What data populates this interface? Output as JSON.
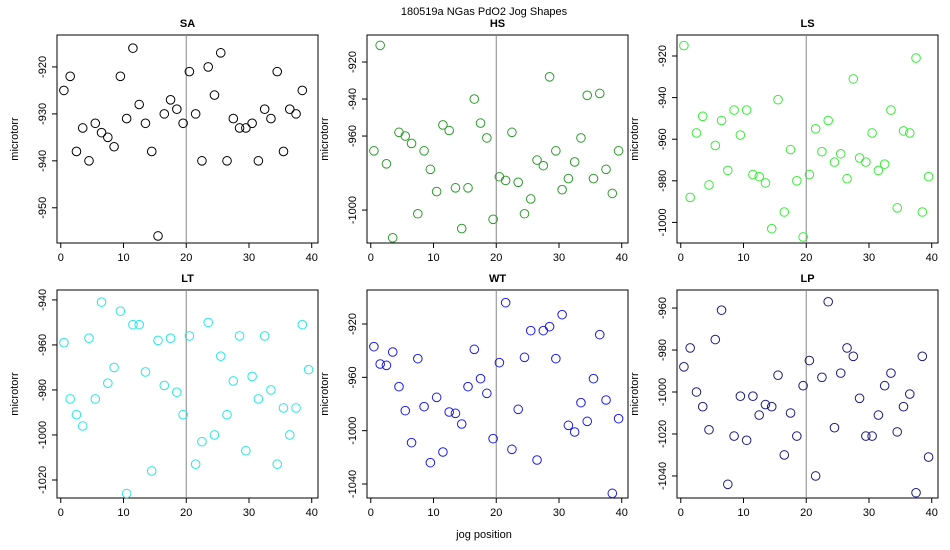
{
  "title": "180519a   NGas PdO2 Jog Shapes",
  "xlabel": "jog position",
  "chart_data": [
    {
      "type": "scatter",
      "title": "SA",
      "ylabel": "microtorr",
      "color": "#000000",
      "vline": 20,
      "xlim": [
        -0.6,
        41
      ],
      "ylim": [
        -957.5,
        -913.2
      ],
      "xticks": [
        0,
        10,
        20,
        30,
        40
      ],
      "yticks": [
        -950,
        -940,
        -930,
        -920
      ],
      "x": [
        0.5,
        1.5,
        2.5,
        3.5,
        4.5,
        5.5,
        6.5,
        7.5,
        8.5,
        9.5,
        10.5,
        11.5,
        12.5,
        13.5,
        14.5,
        15.5,
        16.5,
        17.5,
        18.5,
        19.5,
        20.5,
        21.5,
        22.5,
        23.5,
        24.5,
        25.5,
        26.5,
        27.5,
        28.5,
        29.5,
        30.5,
        31.5,
        32.5,
        33.5,
        34.5,
        35.5,
        36.5,
        37.5,
        38.5
      ],
      "values": [
        -925,
        -922,
        -938,
        -933,
        -940,
        -932,
        -934,
        -935,
        -937,
        -922,
        -931,
        -916,
        -928,
        -932,
        -938,
        -956,
        -930,
        -927,
        -929,
        -932,
        -921,
        -930,
        -940,
        -920,
        -926,
        -917,
        -940,
        -931,
        -933,
        -933,
        -932,
        -940,
        -929,
        -931,
        -921,
        -938,
        -929,
        -930,
        -925
      ]
    },
    {
      "type": "scatter",
      "title": "HS",
      "ylabel": "microtorr",
      "color": "#2e9a2e",
      "vline": 20,
      "xlim": [
        -0.6,
        41
      ],
      "ylim": [
        -1017.8,
        -905.4
      ],
      "xticks": [
        0,
        10,
        20,
        30,
        40
      ],
      "yticks": [
        -1000,
        -960,
        -940,
        -920
      ],
      "x": [
        0.5,
        1.5,
        2.5,
        3.5,
        4.5,
        5.5,
        6.5,
        7.5,
        8.5,
        9.5,
        10.5,
        11.5,
        12.5,
        13.5,
        14.5,
        15.5,
        16.5,
        17.5,
        18.5,
        19.5,
        20.5,
        21.5,
        22.5,
        23.5,
        24.5,
        25.5,
        26.5,
        27.5,
        28.5,
        29.5,
        30.5,
        31.5,
        32.5,
        33.5,
        34.5,
        35.5,
        36.5,
        37.5,
        38.5,
        39.5
      ],
      "values": [
        -968,
        -911,
        -975,
        -1015,
        -958,
        -960,
        -964,
        -1002,
        -968,
        -978,
        -990,
        -954,
        -957,
        -988,
        -1010,
        -988,
        -940,
        -953,
        -961,
        -1005,
        -982,
        -984,
        -958,
        -985,
        -1002,
        -994,
        -973,
        -976,
        -928,
        -968,
        -989,
        -983,
        -974,
        -961,
        -938,
        -983,
        -937,
        -978,
        -991,
        -968
      ]
    },
    {
      "type": "scatter",
      "title": "LS",
      "ylabel": "microtorr",
      "color": "#3aec3a",
      "vline": 20,
      "xlim": [
        -0.6,
        41
      ],
      "ylim": [
        -1009.9,
        -909.9
      ],
      "xticks": [
        0,
        10,
        20,
        30,
        40
      ],
      "yticks": [
        -1000,
        -980,
        -960,
        -940,
        -920
      ],
      "x": [
        0.5,
        1.5,
        2.5,
        3.5,
        4.5,
        5.5,
        6.5,
        7.5,
        8.5,
        9.5,
        10.5,
        11.5,
        12.5,
        13.5,
        14.5,
        15.5,
        16.5,
        17.5,
        18.5,
        19.5,
        20.5,
        21.5,
        22.5,
        23.5,
        24.5,
        25.5,
        26.5,
        27.5,
        28.5,
        29.5,
        30.5,
        31.5,
        32.5,
        33.5,
        34.5,
        35.5,
        36.5,
        37.5,
        38.5,
        39.5
      ],
      "values": [
        -915,
        -988,
        -957,
        -949,
        -982,
        -963,
        -951,
        -975,
        -946,
        -958,
        -946,
        -977,
        -978,
        -981,
        -1003,
        -941,
        -995,
        -965,
        -980,
        -1007,
        -977,
        -955,
        -966,
        -951,
        -971,
        -967,
        -979,
        -931,
        -969,
        -971,
        -957,
        -975,
        -972,
        -946,
        -993,
        -956,
        -957,
        -921,
        -995,
        -978
      ]
    },
    {
      "type": "scatter",
      "title": "LT",
      "ylabel": "microtorr",
      "color": "#2ae6e6",
      "vline": 20,
      "xlim": [
        -0.6,
        41
      ],
      "ylim": [
        -1028,
        -935.6
      ],
      "xticks": [
        0,
        10,
        20,
        30,
        40
      ],
      "yticks": [
        -1020,
        -1000,
        -980,
        -960,
        -940
      ],
      "x": [
        0.5,
        1.5,
        2.5,
        3.5,
        4.5,
        5.5,
        6.5,
        7.5,
        8.5,
        9.5,
        10.5,
        11.5,
        12.5,
        13.5,
        14.5,
        15.5,
        16.5,
        17.5,
        18.5,
        19.5,
        20.5,
        21.5,
        22.5,
        23.5,
        24.5,
        25.5,
        26.5,
        27.5,
        28.5,
        29.5,
        30.5,
        31.5,
        32.5,
        33.5,
        34.5,
        35.5,
        36.5,
        37.5,
        38.5,
        39.5
      ],
      "values": [
        -959,
        -984,
        -991,
        -996,
        -957,
        -984,
        -941,
        -977,
        -970,
        -945,
        -1026,
        -951,
        -951,
        -972,
        -1016,
        -958,
        -978,
        -957,
        -981,
        -991,
        -956,
        -1013,
        -1003,
        -950,
        -1000,
        -965,
        -991,
        -976,
        -956,
        -1007,
        -974,
        -984,
        -956,
        -980,
        -1013,
        -988,
        -1000,
        -988,
        -951,
        -971
      ]
    },
    {
      "type": "scatter",
      "title": "WT",
      "ylabel": "microtorr",
      "color": "#1c1ce8",
      "vline": 20,
      "xlim": [
        -0.6,
        41
      ],
      "ylim": [
        -1050.5,
        -894.5
      ],
      "xticks": [
        0,
        10,
        20,
        30,
        40
      ],
      "yticks": [
        -1040,
        -1000,
        -960,
        -920
      ],
      "x": [
        0.5,
        1.5,
        2.5,
        3.5,
        4.5,
        5.5,
        6.5,
        7.5,
        8.5,
        9.5,
        10.5,
        11.5,
        12.5,
        13.5,
        14.5,
        15.5,
        16.5,
        17.5,
        18.5,
        19.5,
        20.5,
        21.5,
        22.5,
        23.5,
        24.5,
        25.5,
        26.5,
        27.5,
        28.5,
        29.5,
        30.5,
        31.5,
        32.5,
        33.5,
        34.5,
        35.5,
        36.5,
        37.5,
        38.5,
        39.5
      ],
      "values": [
        -937,
        -950,
        -951,
        -941,
        -967,
        -985,
        -1009,
        -946,
        -982,
        -1024,
        -975,
        -1016,
        -986,
        -987,
        -995,
        -967,
        -939,
        -961,
        -972,
        -1006,
        -949,
        -904,
        -1014,
        -984,
        -945,
        -925,
        -1022,
        -925,
        -922,
        -946,
        -913,
        -996,
        -1001,
        -979,
        -993,
        -961,
        -928,
        -977,
        -1047,
        -991
      ]
    },
    {
      "type": "scatter",
      "title": "LP",
      "ylabel": "microtorr",
      "color": "#1c1c80",
      "vline": 20,
      "xlim": [
        -0.6,
        41
      ],
      "ylim": [
        -1050.5,
        -951.4
      ],
      "xticks": [
        0,
        10,
        20,
        30,
        40
      ],
      "yticks": [
        -1040,
        -1020,
        -1000,
        -980,
        -960
      ],
      "x": [
        0.5,
        1.5,
        2.5,
        3.5,
        4.5,
        5.5,
        6.5,
        7.5,
        8.5,
        9.5,
        10.5,
        11.5,
        12.5,
        13.5,
        14.5,
        15.5,
        16.5,
        17.5,
        18.5,
        19.5,
        20.5,
        21.5,
        22.5,
        23.5,
        24.5,
        25.5,
        26.5,
        27.5,
        28.5,
        29.5,
        30.5,
        31.5,
        32.5,
        33.5,
        34.5,
        35.5,
        36.5,
        37.5,
        38.5,
        39.5
      ],
      "values": [
        -988,
        -979,
        -1000,
        -1007,
        -1018,
        -975,
        -961,
        -1044,
        -1021,
        -1002,
        -1023,
        -1002,
        -1011,
        -1006,
        -1007,
        -992,
        -1030,
        -1010,
        -1021,
        -997,
        -985,
        -1040,
        -993,
        -957,
        -1017,
        -991,
        -979,
        -983,
        -1003,
        -1021,
        -1021,
        -1011,
        -997,
        -991,
        -1019,
        -1007,
        -1001,
        -1048,
        -983,
        -1031
      ]
    }
  ]
}
